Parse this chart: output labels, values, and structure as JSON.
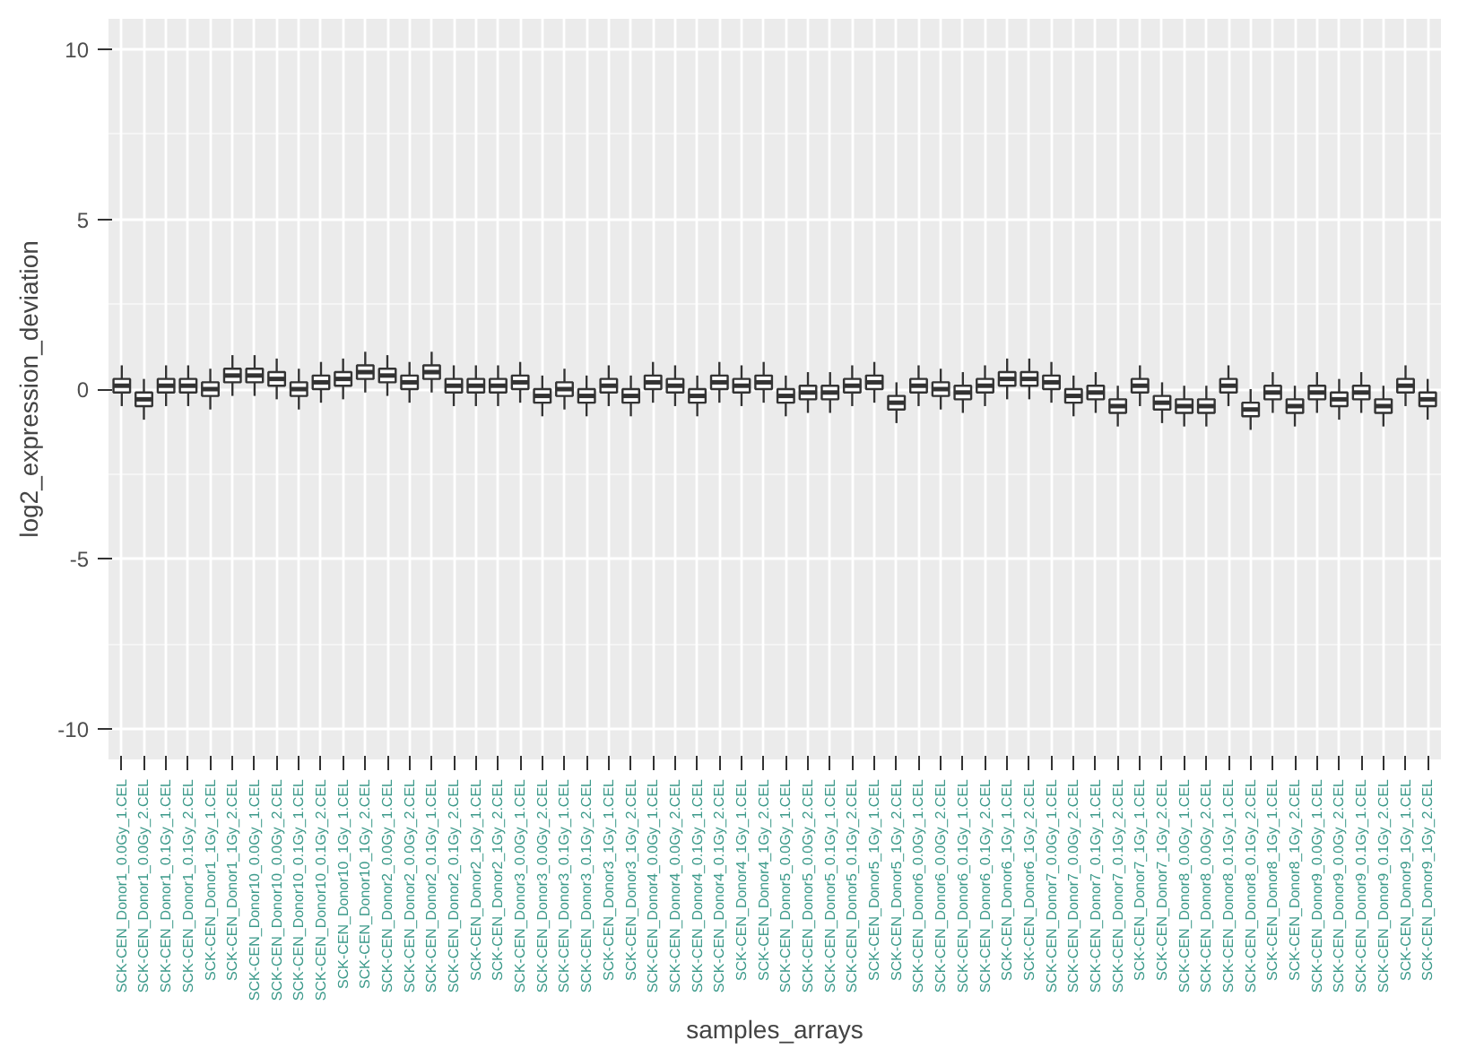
{
  "chart_data": {
    "type": "box",
    "xlabel": "samples_arrays",
    "ylabel": "log2_expression_deviation",
    "categories": [
      "SCK-CEN_Donor1_0.0Gy_1.CEL",
      "SCK-CEN_Donor1_0.0Gy_2.CEL",
      "SCK-CEN_Donor1_0.1Gy_1.CEL",
      "SCK-CEN_Donor1_0.1Gy_2.CEL",
      "SCK-CEN_Donor1_1Gy_1.CEL",
      "SCK-CEN_Donor1_1Gy_2.CEL",
      "SCK-CEN_Donor10_0.0Gy_1.CEL",
      "SCK-CEN_Donor10_0.0Gy_2.CEL",
      "SCK-CEN_Donor10_0.1Gy_1.CEL",
      "SCK-CEN_Donor10_0.1Gy_2.CEL",
      "SCK-CEN_Donor10_1Gy_1.CEL",
      "SCK-CEN_Donor10_1Gy_2.CEL",
      "SCK-CEN_Donor2_0.0Gy_1.CEL",
      "SCK-CEN_Donor2_0.0Gy_2.CEL",
      "SCK-CEN_Donor2_0.1Gy_1.CEL",
      "SCK-CEN_Donor2_0.1Gy_2.CEL",
      "SCK-CEN_Donor2_1Gy_1.CEL",
      "SCK-CEN_Donor2_1Gy_2.CEL",
      "SCK-CEN_Donor3_0.0Gy_1.CEL",
      "SCK-CEN_Donor3_0.0Gy_2.CEL",
      "SCK-CEN_Donor3_0.1Gy_1.CEL",
      "SCK-CEN_Donor3_0.1Gy_2.CEL",
      "SCK-CEN_Donor3_1Gy_1.CEL",
      "SCK-CEN_Donor3_1Gy_2.CEL",
      "SCK-CEN_Donor4_0.0Gy_1.CEL",
      "SCK-CEN_Donor4_0.0Gy_2.CEL",
      "SCK-CEN_Donor4_0.1Gy_1.CEL",
      "SCK-CEN_Donor4_0.1Gy_2.CEL",
      "SCK-CEN_Donor4_1Gy_1.CEL",
      "SCK-CEN_Donor4_1Gy_2.CEL",
      "SCK-CEN_Donor5_0.0Gy_1.CEL",
      "SCK-CEN_Donor5_0.0Gy_2.CEL",
      "SCK-CEN_Donor5_0.1Gy_1.CEL",
      "SCK-CEN_Donor5_0.1Gy_2.CEL",
      "SCK-CEN_Donor5_1Gy_1.CEL",
      "SCK-CEN_Donor5_1Gy_2.CEL",
      "SCK-CEN_Donor6_0.0Gy_1.CEL",
      "SCK-CEN_Donor6_0.0Gy_2.CEL",
      "SCK-CEN_Donor6_0.1Gy_1.CEL",
      "SCK-CEN_Donor6_0.1Gy_2.CEL",
      "SCK-CEN_Donor6_1Gy_1.CEL",
      "SCK-CEN_Donor6_1Gy_2.CEL",
      "SCK-CEN_Donor7_0.0Gy_1.CEL",
      "SCK-CEN_Donor7_0.0Gy_2.CEL",
      "SCK-CEN_Donor7_0.1Gy_1.CEL",
      "SCK-CEN_Donor7_0.1Gy_2.CEL",
      "SCK-CEN_Donor7_1Gy_1.CEL",
      "SCK-CEN_Donor7_1Gy_2.CEL",
      "SCK-CEN_Donor8_0.0Gy_1.CEL",
      "SCK-CEN_Donor8_0.0Gy_2.CEL",
      "SCK-CEN_Donor8_0.1Gy_1.CEL",
      "SCK-CEN_Donor8_0.1Gy_2.CEL",
      "SCK-CEN_Donor8_1Gy_1.CEL",
      "SCK-CEN_Donor8_1Gy_2.CEL",
      "SCK-CEN_Donor9_0.0Gy_1.CEL",
      "SCK-CEN_Donor9_0.0Gy_2.CEL",
      "SCK-CEN_Donor9_0.1Gy_1.CEL",
      "SCK-CEN_Donor9_0.1Gy_2.CEL",
      "SCK-CEN_Donor9_1Gy_1.CEL",
      "SCK-CEN_Donor9_1Gy_2.CEL"
    ],
    "ylim": [
      -10.9,
      10.9
    ],
    "yticks": [
      -10,
      -5,
      0,
      5,
      10
    ],
    "grid": true,
    "series": [
      {
        "color": "#333333",
        "boxes": [
          {
            "low": -0.5,
            "q1": -0.1,
            "median": 0.1,
            "q3": 0.3,
            "high": 0.7
          },
          {
            "low": -0.9,
            "q1": -0.5,
            "median": -0.3,
            "q3": -0.1,
            "high": 0.3
          },
          {
            "low": -0.5,
            "q1": -0.1,
            "median": 0.1,
            "q3": 0.3,
            "high": 0.7
          },
          {
            "low": -0.5,
            "q1": -0.1,
            "median": 0.1,
            "q3": 0.3,
            "high": 0.7
          },
          {
            "low": -0.6,
            "q1": -0.2,
            "median": 0.0,
            "q3": 0.2,
            "high": 0.6
          },
          {
            "low": -0.2,
            "q1": 0.2,
            "median": 0.4,
            "q3": 0.6,
            "high": 1.0
          },
          {
            "low": -0.2,
            "q1": 0.2,
            "median": 0.4,
            "q3": 0.6,
            "high": 1.0
          },
          {
            "low": -0.3,
            "q1": 0.1,
            "median": 0.3,
            "q3": 0.5,
            "high": 0.9
          },
          {
            "low": -0.6,
            "q1": -0.2,
            "median": 0.0,
            "q3": 0.2,
            "high": 0.6
          },
          {
            "low": -0.4,
            "q1": 0.0,
            "median": 0.2,
            "q3": 0.4,
            "high": 0.8
          },
          {
            "low": -0.3,
            "q1": 0.1,
            "median": 0.3,
            "q3": 0.5,
            "high": 0.9
          },
          {
            "low": -0.1,
            "q1": 0.3,
            "median": 0.5,
            "q3": 0.7,
            "high": 1.1
          },
          {
            "low": -0.2,
            "q1": 0.2,
            "median": 0.4,
            "q3": 0.6,
            "high": 1.0
          },
          {
            "low": -0.4,
            "q1": 0.0,
            "median": 0.2,
            "q3": 0.4,
            "high": 0.8
          },
          {
            "low": -0.1,
            "q1": 0.3,
            "median": 0.5,
            "q3": 0.7,
            "high": 1.1
          },
          {
            "low": -0.5,
            "q1": -0.1,
            "median": 0.1,
            "q3": 0.3,
            "high": 0.7
          },
          {
            "low": -0.5,
            "q1": -0.1,
            "median": 0.1,
            "q3": 0.3,
            "high": 0.7
          },
          {
            "low": -0.5,
            "q1": -0.1,
            "median": 0.1,
            "q3": 0.3,
            "high": 0.7
          },
          {
            "low": -0.4,
            "q1": 0.0,
            "median": 0.2,
            "q3": 0.4,
            "high": 0.8
          },
          {
            "low": -0.8,
            "q1": -0.4,
            "median": -0.2,
            "q3": 0.0,
            "high": 0.4
          },
          {
            "low": -0.6,
            "q1": -0.2,
            "median": 0.0,
            "q3": 0.2,
            "high": 0.6
          },
          {
            "low": -0.8,
            "q1": -0.4,
            "median": -0.2,
            "q3": 0.0,
            "high": 0.4
          },
          {
            "low": -0.5,
            "q1": -0.1,
            "median": 0.1,
            "q3": 0.3,
            "high": 0.7
          },
          {
            "low": -0.8,
            "q1": -0.4,
            "median": -0.2,
            "q3": 0.0,
            "high": 0.4
          },
          {
            "low": -0.4,
            "q1": 0.0,
            "median": 0.2,
            "q3": 0.4,
            "high": 0.8
          },
          {
            "low": -0.5,
            "q1": -0.1,
            "median": 0.1,
            "q3": 0.3,
            "high": 0.7
          },
          {
            "low": -0.8,
            "q1": -0.4,
            "median": -0.2,
            "q3": 0.0,
            "high": 0.4
          },
          {
            "low": -0.4,
            "q1": 0.0,
            "median": 0.2,
            "q3": 0.4,
            "high": 0.8
          },
          {
            "low": -0.5,
            "q1": -0.1,
            "median": 0.1,
            "q3": 0.3,
            "high": 0.7
          },
          {
            "low": -0.4,
            "q1": 0.0,
            "median": 0.2,
            "q3": 0.4,
            "high": 0.8
          },
          {
            "low": -0.8,
            "q1": -0.4,
            "median": -0.2,
            "q3": 0.0,
            "high": 0.4
          },
          {
            "low": -0.7,
            "q1": -0.3,
            "median": -0.1,
            "q3": 0.1,
            "high": 0.5
          },
          {
            "low": -0.7,
            "q1": -0.3,
            "median": -0.1,
            "q3": 0.1,
            "high": 0.5
          },
          {
            "low": -0.5,
            "q1": -0.1,
            "median": 0.1,
            "q3": 0.3,
            "high": 0.7
          },
          {
            "low": -0.4,
            "q1": 0.0,
            "median": 0.2,
            "q3": 0.4,
            "high": 0.8
          },
          {
            "low": -1.0,
            "q1": -0.6,
            "median": -0.4,
            "q3": -0.2,
            "high": 0.2
          },
          {
            "low": -0.5,
            "q1": -0.1,
            "median": 0.1,
            "q3": 0.3,
            "high": 0.7
          },
          {
            "low": -0.6,
            "q1": -0.2,
            "median": 0.0,
            "q3": 0.2,
            "high": 0.6
          },
          {
            "low": -0.7,
            "q1": -0.3,
            "median": -0.1,
            "q3": 0.1,
            "high": 0.5
          },
          {
            "low": -0.5,
            "q1": -0.1,
            "median": 0.1,
            "q3": 0.3,
            "high": 0.7
          },
          {
            "low": -0.3,
            "q1": 0.1,
            "median": 0.3,
            "q3": 0.5,
            "high": 0.9
          },
          {
            "low": -0.3,
            "q1": 0.1,
            "median": 0.3,
            "q3": 0.5,
            "high": 0.9
          },
          {
            "low": -0.4,
            "q1": 0.0,
            "median": 0.2,
            "q3": 0.4,
            "high": 0.8
          },
          {
            "low": -0.8,
            "q1": -0.4,
            "median": -0.2,
            "q3": 0.0,
            "high": 0.4
          },
          {
            "low": -0.7,
            "q1": -0.3,
            "median": -0.1,
            "q3": 0.1,
            "high": 0.5
          },
          {
            "low": -1.1,
            "q1": -0.7,
            "median": -0.5,
            "q3": -0.3,
            "high": 0.1
          },
          {
            "low": -0.5,
            "q1": -0.1,
            "median": 0.1,
            "q3": 0.3,
            "high": 0.7
          },
          {
            "low": -1.0,
            "q1": -0.6,
            "median": -0.4,
            "q3": -0.2,
            "high": 0.2
          },
          {
            "low": -1.1,
            "q1": -0.7,
            "median": -0.5,
            "q3": -0.3,
            "high": 0.1
          },
          {
            "low": -1.1,
            "q1": -0.7,
            "median": -0.5,
            "q3": -0.3,
            "high": 0.1
          },
          {
            "low": -0.5,
            "q1": -0.1,
            "median": 0.1,
            "q3": 0.3,
            "high": 0.7
          },
          {
            "low": -1.2,
            "q1": -0.8,
            "median": -0.6,
            "q3": -0.4,
            "high": 0.0
          },
          {
            "low": -0.7,
            "q1": -0.3,
            "median": -0.1,
            "q3": 0.1,
            "high": 0.5
          },
          {
            "low": -1.1,
            "q1": -0.7,
            "median": -0.5,
            "q3": -0.3,
            "high": 0.1
          },
          {
            "low": -0.7,
            "q1": -0.3,
            "median": -0.1,
            "q3": 0.1,
            "high": 0.5
          },
          {
            "low": -0.9,
            "q1": -0.5,
            "median": -0.3,
            "q3": -0.1,
            "high": 0.3
          },
          {
            "low": -0.7,
            "q1": -0.3,
            "median": -0.1,
            "q3": 0.1,
            "high": 0.5
          },
          {
            "low": -1.1,
            "q1": -0.7,
            "median": -0.5,
            "q3": -0.3,
            "high": 0.1
          },
          {
            "low": -0.5,
            "q1": -0.1,
            "median": 0.1,
            "q3": 0.3,
            "high": 0.7
          },
          {
            "low": -0.9,
            "q1": -0.5,
            "median": -0.3,
            "q3": -0.1,
            "high": 0.3
          }
        ]
      }
    ]
  }
}
